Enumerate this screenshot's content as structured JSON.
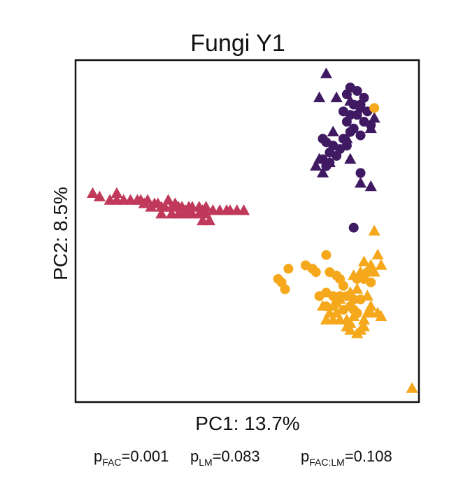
{
  "chart_data": {
    "type": "scatter",
    "title": "Fungi Y1",
    "xlabel": "PC1: 13.7%",
    "ylabel": "PC2: 8.5%",
    "xlim": [
      0,
      100
    ],
    "ylim": [
      0,
      100
    ],
    "grid": false,
    "series": [
      {
        "name": "red-triangles",
        "color": "#c0395a",
        "shape": "triangle",
        "points": [
          [
            12,
            61
          ],
          [
            5,
            61
          ],
          [
            7,
            60
          ],
          [
            10,
            59
          ],
          [
            12,
            59
          ],
          [
            14,
            59
          ],
          [
            16,
            59
          ],
          [
            18,
            59
          ],
          [
            19,
            59
          ],
          [
            20,
            58
          ],
          [
            21,
            59
          ],
          [
            22,
            57
          ],
          [
            23,
            58
          ],
          [
            24,
            58
          ],
          [
            25,
            57
          ],
          [
            26,
            57
          ],
          [
            27,
            59
          ],
          [
            28,
            57
          ],
          [
            29,
            58
          ],
          [
            30,
            57
          ],
          [
            31,
            57
          ],
          [
            32,
            56
          ],
          [
            33,
            57
          ],
          [
            34,
            57
          ],
          [
            36,
            57
          ],
          [
            37,
            56
          ],
          [
            38,
            57
          ],
          [
            40,
            56
          ],
          [
            42,
            56
          ],
          [
            44,
            56
          ],
          [
            45,
            56
          ],
          [
            47,
            56
          ],
          [
            49,
            56
          ],
          [
            25,
            55
          ],
          [
            28,
            55
          ],
          [
            30,
            55
          ],
          [
            32,
            55
          ],
          [
            34,
            55
          ],
          [
            36,
            55
          ],
          [
            38,
            55
          ],
          [
            37,
            53
          ],
          [
            39,
            53
          ]
        ]
      },
      {
        "name": "purple-circles",
        "color": "#3f1a62",
        "shape": "circle",
        "points": [
          [
            80,
            92
          ],
          [
            82,
            91
          ],
          [
            79,
            90
          ],
          [
            84,
            89
          ],
          [
            83,
            87
          ],
          [
            81,
            87
          ],
          [
            78,
            85
          ],
          [
            80,
            84
          ],
          [
            79,
            82
          ],
          [
            83,
            86
          ],
          [
            82,
            84
          ],
          [
            85,
            85
          ],
          [
            81,
            80
          ],
          [
            84,
            82
          ],
          [
            83,
            78
          ],
          [
            80,
            79
          ],
          [
            86,
            81
          ],
          [
            78,
            77
          ],
          [
            79,
            75
          ],
          [
            77,
            74
          ],
          [
            73,
            76
          ],
          [
            72,
            77
          ],
          [
            75,
            75
          ],
          [
            74,
            73
          ],
          [
            76,
            72
          ],
          [
            74,
            70
          ],
          [
            73,
            69
          ],
          [
            72,
            71
          ],
          [
            83,
            67
          ],
          [
            81,
            51
          ]
        ]
      },
      {
        "name": "purple-triangles",
        "color": "#3f1a62",
        "shape": "triangle",
        "points": [
          [
            73,
            96
          ],
          [
            71,
            89
          ],
          [
            76,
            89
          ],
          [
            80,
            88
          ],
          [
            87,
            83
          ],
          [
            86,
            80
          ],
          [
            75,
            79
          ],
          [
            79,
            77
          ],
          [
            71,
            71
          ],
          [
            74,
            70
          ],
          [
            80,
            71
          ],
          [
            70,
            69
          ],
          [
            83,
            64
          ],
          [
            86,
            63
          ],
          [
            72,
            67
          ]
        ]
      },
      {
        "name": "orange-circles",
        "color": "#f5a81b",
        "shape": "circle",
        "points": [
          [
            87,
            86
          ],
          [
            73,
            43
          ],
          [
            69,
            39
          ],
          [
            67,
            40
          ],
          [
            70,
            38
          ],
          [
            60,
            35
          ],
          [
            59,
            36
          ],
          [
            62,
            39
          ],
          [
            61,
            33
          ],
          [
            74,
            38
          ],
          [
            76,
            37
          ],
          [
            77,
            36
          ],
          [
            78,
            34
          ],
          [
            82,
            36
          ],
          [
            84,
            36
          ],
          [
            85,
            38
          ],
          [
            86,
            35
          ],
          [
            79,
            31
          ],
          [
            81,
            30
          ],
          [
            83,
            30
          ],
          [
            73,
            32
          ],
          [
            75,
            31
          ],
          [
            76,
            29
          ],
          [
            77,
            31
          ],
          [
            71,
            31
          ],
          [
            73,
            28
          ],
          [
            80,
            28
          ],
          [
            81,
            27
          ],
          [
            78,
            27
          ],
          [
            82,
            26
          ]
        ]
      },
      {
        "name": "orange-triangles",
        "color": "#f5a81b",
        "shape": "triangle",
        "points": [
          [
            87,
            50
          ],
          [
            88,
            43
          ],
          [
            89,
            40
          ],
          [
            86,
            40
          ],
          [
            87,
            38
          ],
          [
            84,
            41
          ],
          [
            83,
            38
          ],
          [
            81,
            37
          ],
          [
            82,
            33
          ],
          [
            80,
            32
          ],
          [
            85,
            31
          ],
          [
            86,
            28
          ],
          [
            77,
            30
          ],
          [
            72,
            28
          ],
          [
            74,
            26
          ],
          [
            76,
            26
          ],
          [
            73,
            24
          ],
          [
            79,
            24
          ],
          [
            80,
            23
          ],
          [
            84,
            24
          ],
          [
            83,
            21
          ],
          [
            82,
            20
          ],
          [
            81,
            25
          ],
          [
            85,
            26
          ],
          [
            86,
            26
          ],
          [
            79,
            22
          ],
          [
            75,
            24
          ],
          [
            98,
            4
          ],
          [
            88,
            26
          ],
          [
            84,
            22
          ],
          [
            80,
            21
          ],
          [
            77,
            24
          ],
          [
            75,
            28
          ],
          [
            89,
            25
          ]
        ]
      }
    ]
  },
  "stats": {
    "p_fac": {
      "p": "p",
      "sub": "FAC",
      "value": "=0.001"
    },
    "p_lm": {
      "p": "p",
      "sub": "LM",
      "value": "=0.083"
    },
    "p_fac_lm": {
      "p": "p",
      "sub": "FAC:LM",
      "value": "=0.108"
    }
  }
}
